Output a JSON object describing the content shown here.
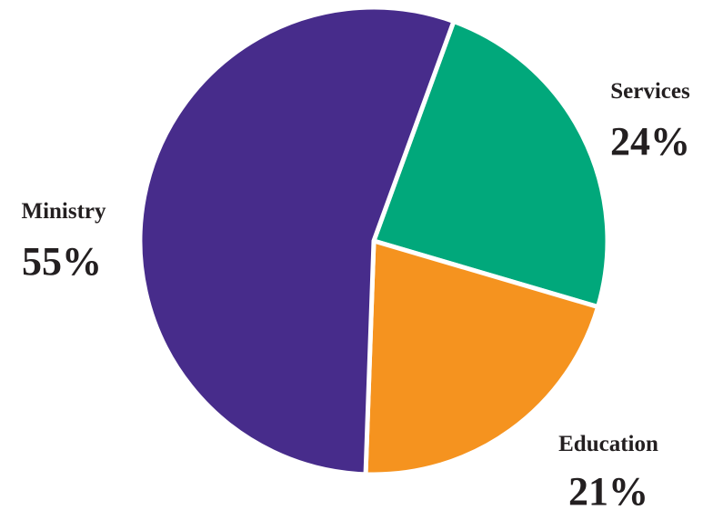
{
  "chart_data": {
    "type": "pie",
    "title": "",
    "slices": [
      {
        "label": "Ministry",
        "value": 55,
        "value_label": "55%",
        "color": "#472c8b"
      },
      {
        "label": "Services",
        "value": 24,
        "value_label": "24%",
        "color": "#01a87b"
      },
      {
        "label": "Education",
        "value": 21,
        "value_label": "21%",
        "color": "#f5931f"
      }
    ],
    "separator_color": "#ffffff",
    "legend": "none"
  }
}
